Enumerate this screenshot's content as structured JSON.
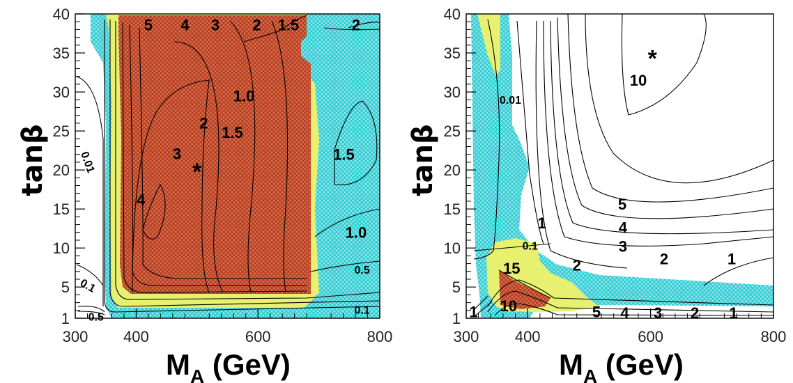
{
  "colors": {
    "cyan": "#2ad2d8",
    "yellow": "#e6f06a",
    "red": "#c24a2a",
    "line": "#000000"
  },
  "chart_data": [
    {
      "type": "contour",
      "xlabel": "M",
      "xlabel_sub": "A",
      "xlabel_unit": " (GeV)",
      "ylabel": "tanβ",
      "xlim": [
        300,
        800
      ],
      "ylim": [
        1,
        40
      ],
      "xticks": [
        "300",
        "400",
        "600",
        "800"
      ],
      "yticks": [
        "1",
        "5",
        "10",
        "15",
        "20",
        "25",
        "30",
        "35",
        "40"
      ],
      "marker": {
        "symbol": "*",
        "x": 500,
        "y": 20
      },
      "contour_labels": [
        {
          "text": "5",
          "x": 420,
          "y": 38.6
        },
        {
          "text": "4",
          "x": 480,
          "y": 38.6
        },
        {
          "text": "3",
          "x": 530,
          "y": 38.6
        },
        {
          "text": "2",
          "x": 598,
          "y": 38.6
        },
        {
          "text": "1.5",
          "x": 650,
          "y": 38.6
        },
        {
          "text": "2",
          "x": 761,
          "y": 38.6
        },
        {
          "text": "1.0",
          "x": 577,
          "y": 29.5
        },
        {
          "text": "2",
          "x": 511,
          "y": 26.0
        },
        {
          "text": "1.5",
          "x": 558,
          "y": 24.8
        },
        {
          "text": "3",
          "x": 467,
          "y": 22.1
        },
        {
          "text": "4",
          "x": 408,
          "y": 16.2
        },
        {
          "text": "1.5",
          "x": 741,
          "y": 22.0
        },
        {
          "text": "1.0",
          "x": 761,
          "y": 12.0
        },
        {
          "text": "0.5",
          "x": 771,
          "y": 7.2
        },
        {
          "text": "0.1",
          "x": 771,
          "y": 2.1
        },
        {
          "text": "0.01",
          "x": 321,
          "y": 21.0
        },
        {
          "text": "0.1",
          "x": 321,
          "y": 5.2
        },
        {
          "text": "0.5",
          "x": 334,
          "y": 1.2
        }
      ]
    },
    {
      "type": "contour",
      "xlabel": "M",
      "xlabel_sub": "A",
      "xlabel_unit": " (GeV)",
      "ylabel": "tanβ",
      "xlim": [
        300,
        800
      ],
      "ylim": [
        1,
        40
      ],
      "xticks": [
        "300",
        "400",
        "600",
        "800"
      ],
      "yticks": [
        "1",
        "5",
        "10",
        "15",
        "20",
        "25",
        "30",
        "35",
        "40"
      ],
      "marker": {
        "symbol": "*",
        "x": 603,
        "y": 34.5
      },
      "contour_labels": [
        {
          "text": "10",
          "x": 580,
          "y": 31.5
        },
        {
          "text": "0.01",
          "x": 372,
          "y": 29.0
        },
        {
          "text": "5",
          "x": 554,
          "y": 15.6
        },
        {
          "text": "4",
          "x": 555,
          "y": 12.6
        },
        {
          "text": "3",
          "x": 555,
          "y": 10.2
        },
        {
          "text": "1",
          "x": 423,
          "y": 13.2
        },
        {
          "text": "0.1",
          "x": 404,
          "y": 10.3
        },
        {
          "text": "2",
          "x": 480,
          "y": 7.8
        },
        {
          "text": "2",
          "x": 622,
          "y": 8.6
        },
        {
          "text": "1",
          "x": 732,
          "y": 8.6
        },
        {
          "text": "15",
          "x": 374,
          "y": 7.4
        },
        {
          "text": "10",
          "x": 369,
          "y": 2.6
        },
        {
          "text": "1",
          "x": 312,
          "y": 1.8
        },
        {
          "text": "5",
          "x": 512,
          "y": 1.8
        },
        {
          "text": "4",
          "x": 558,
          "y": 1.7
        },
        {
          "text": "3",
          "x": 612,
          "y": 1.7
        },
        {
          "text": "2",
          "x": 672,
          "y": 1.7
        },
        {
          "text": "1",
          "x": 735,
          "y": 1.7
        }
      ]
    }
  ]
}
